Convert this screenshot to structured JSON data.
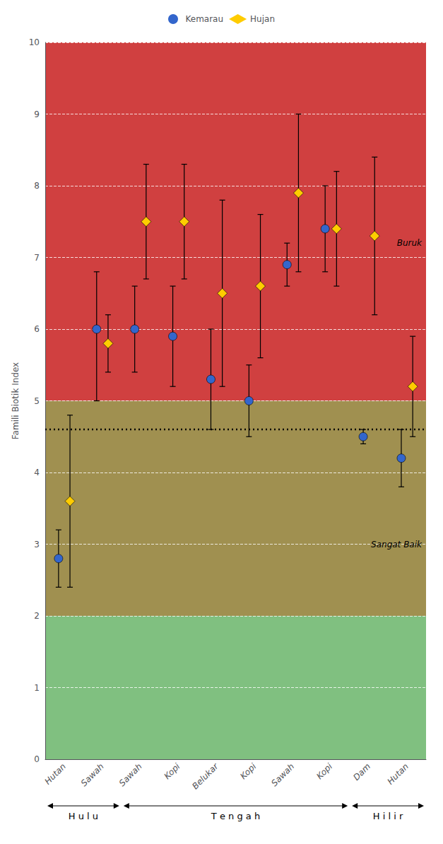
{
  "chart_data": {
    "type": "scatter",
    "ylabel": "Famili Biotik Index",
    "categories": [
      "Hutan",
      "Sawah",
      "Sawah",
      "Kopi",
      "Belukar",
      "Kopi",
      "Sawah",
      "Kopi",
      "Dam",
      "Hutan"
    ],
    "ylim": [
      0,
      10
    ],
    "yticks": [
      0,
      1,
      2,
      3,
      4,
      5,
      6,
      7,
      8,
      9,
      10
    ],
    "grid": true,
    "legend": "top",
    "series": [
      {
        "name": "Kemarau",
        "color": "#3366CC",
        "marker": "circle",
        "values": [
          2.8,
          6.0,
          6.0,
          5.9,
          5.3,
          5.0,
          6.9,
          7.4,
          4.5,
          4.2
        ],
        "err_low": [
          0.4,
          1.0,
          0.6,
          0.7,
          0.7,
          0.5,
          0.3,
          0.6,
          0.1,
          0.4
        ],
        "err_high": [
          0.4,
          0.8,
          0.6,
          0.7,
          0.7,
          0.5,
          0.3,
          0.6,
          0.1,
          0.4
        ]
      },
      {
        "name": "Hujan",
        "color": "#FFCC00",
        "marker": "diamond",
        "values": [
          3.6,
          5.8,
          7.5,
          7.5,
          6.5,
          6.6,
          7.9,
          7.4,
          7.3,
          5.2
        ],
        "err_low": [
          1.2,
          0.4,
          0.8,
          0.8,
          1.3,
          1.0,
          1.1,
          0.8,
          1.1,
          0.7
        ],
        "err_high": [
          1.2,
          0.4,
          0.8,
          0.8,
          1.3,
          1.0,
          1.1,
          0.8,
          1.1,
          0.7
        ]
      }
    ],
    "bands": [
      {
        "from": 5,
        "to": 10,
        "color": "#D04040"
      },
      {
        "from": 2,
        "to": 5,
        "color": "#A09050"
      },
      {
        "from": 0,
        "to": 2,
        "color": "#80C080"
      }
    ],
    "reference_line": {
      "y": 4.6,
      "color": "#000000",
      "line_style": "dotted"
    },
    "annotations": [
      {
        "text": "Buruk",
        "y": 7.2
      },
      {
        "text": "Sangat Baik",
        "y": 3.0
      }
    ],
    "sections": [
      {
        "label": "H u l u",
        "from": 0,
        "to": 1
      },
      {
        "label": "T e n g a h",
        "from": 2,
        "to": 7
      },
      {
        "label": "H i l i r",
        "from": 8,
        "to": 9
      }
    ]
  }
}
